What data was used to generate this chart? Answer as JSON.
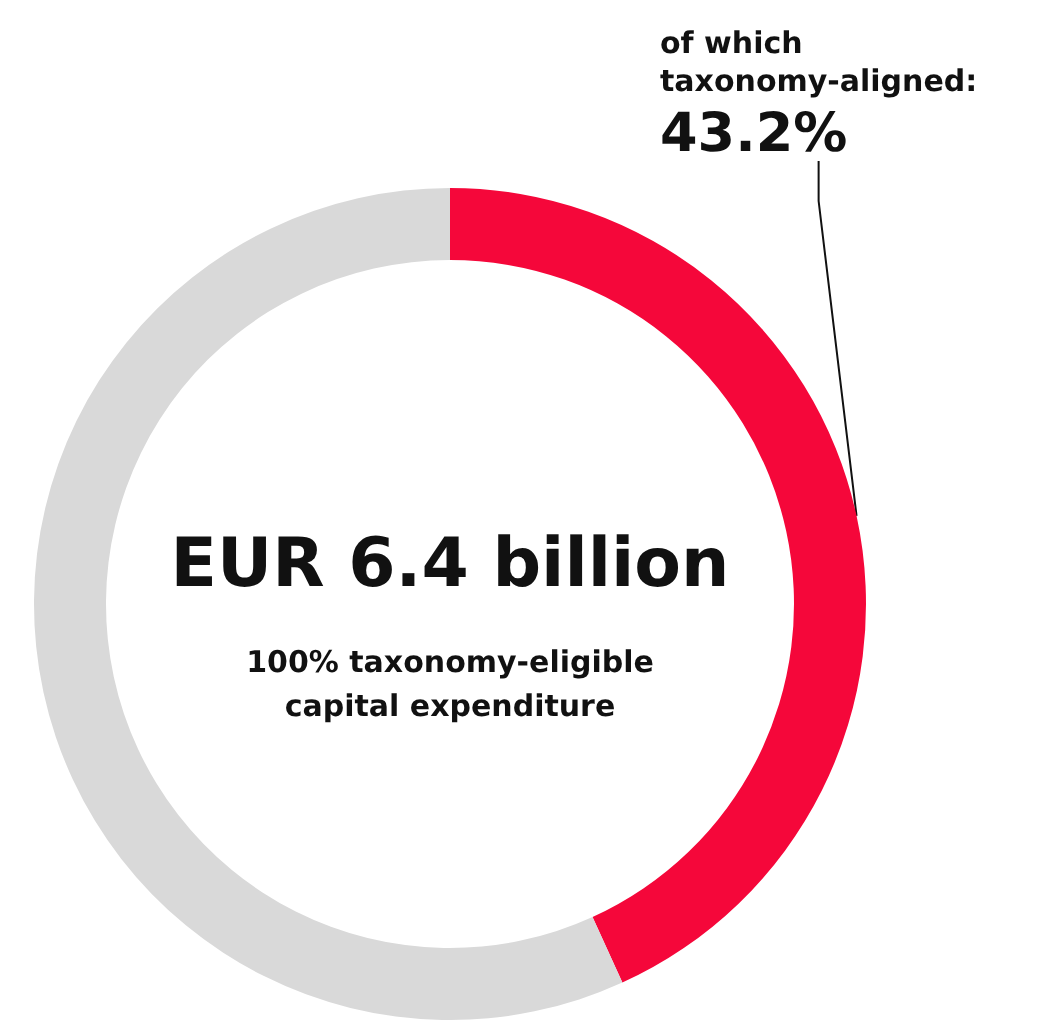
{
  "chart_data": {
    "type": "donut",
    "title": "EUR 6.4 billion",
    "subtitle": "100% taxonomy-eligible\ncapital expenditure",
    "categories": [
      null,
      null
    ],
    "annotations": [
      "of which taxonomy-aligned:"
    ],
    "values": [
      43.2,
      56.8
    ],
    "colors": [
      "#f5073a",
      "#d9d9d9"
    ],
    "value_labels": [
      "43.2%",
      null
    ]
  }
}
